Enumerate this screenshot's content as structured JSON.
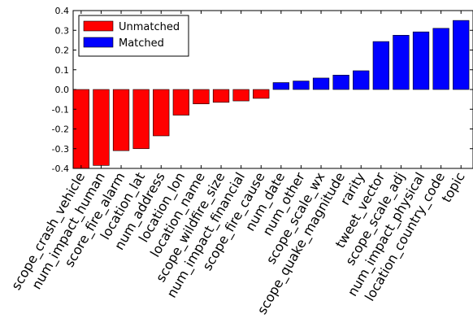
{
  "chart_data": {
    "type": "bar",
    "title": "",
    "xlabel": "",
    "ylabel": "",
    "ylim": [
      -0.4,
      0.4
    ],
    "yticks": [
      "-0.4",
      "-0.3",
      "-0.2",
      "-0.1",
      "0.0",
      "0.1",
      "0.2",
      "0.3",
      "0.4"
    ],
    "grid": false,
    "legend": {
      "position": "top-left",
      "entries": [
        {
          "name": "Unmatched",
          "color": "#ff0000"
        },
        {
          "name": "Matched",
          "color": "#0000ff"
        }
      ]
    },
    "categories": [
      "scope_crash_vehicle",
      "num_impact_human",
      "score_fire_alarm",
      "location_lat",
      "num_address",
      "location_lon",
      "location_name",
      "scope_wildfire_size",
      "num_impact_financial",
      "scope_fire_cause",
      "num_date",
      "num_other",
      "scope_scale_wx",
      "scope_quake_magnitude",
      "rarity",
      "tweet_vector",
      "scope_scale_adj",
      "num_impact_physical",
      "location_country_code",
      "topic"
    ],
    "values": [
      -0.4,
      -0.385,
      -0.31,
      -0.3,
      -0.235,
      -0.13,
      -0.073,
      -0.065,
      -0.058,
      -0.045,
      0.035,
      0.043,
      0.058,
      0.073,
      0.095,
      0.243,
      0.275,
      0.292,
      0.31,
      0.35
    ],
    "colors": {
      "negative": "#ff0000",
      "positive": "#0000ff"
    }
  }
}
